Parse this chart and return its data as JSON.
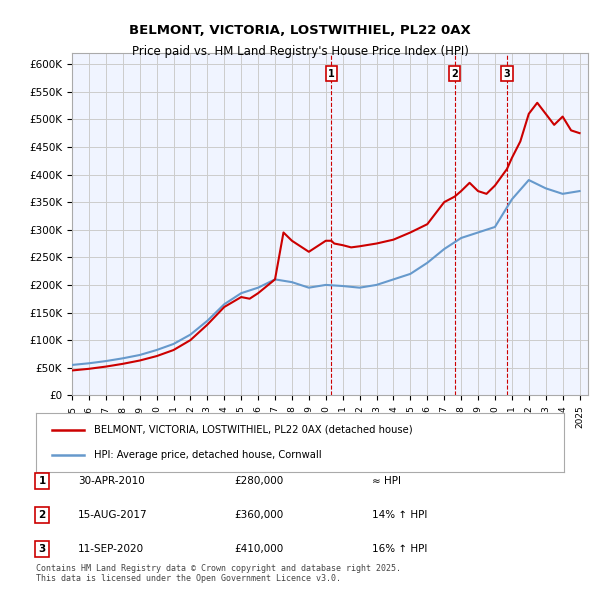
{
  "title": "BELMONT, VICTORIA, LOSTWITHIEL, PL22 0AX",
  "subtitle": "Price paid vs. HM Land Registry's House Price Index (HPI)",
  "legend_line1": "BELMONT, VICTORIA, LOSTWITHIEL, PL22 0AX (detached house)",
  "legend_line2": "HPI: Average price, detached house, Cornwall",
  "footer": "Contains HM Land Registry data © Crown copyright and database right 2025.\nThis data is licensed under the Open Government Licence v3.0.",
  "transactions": [
    {
      "num": 1,
      "date": "30-APR-2010",
      "price": "£280,000",
      "vs_hpi": "≈ HPI",
      "year": 2010.33
    },
    {
      "num": 2,
      "date": "15-AUG-2017",
      "price": "£360,000",
      "vs_hpi": "14% ↑ HPI",
      "year": 2017.62
    },
    {
      "num": 3,
      "date": "11-SEP-2020",
      "price": "£410,000",
      "vs_hpi": "16% ↑ HPI",
      "year": 2020.71
    }
  ],
  "price_color": "#cc0000",
  "hpi_color": "#6699cc",
  "vline_color": "#cc0000",
  "background_color": "#f0f4ff",
  "grid_color": "#cccccc",
  "ylim": [
    0,
    620000
  ],
  "xlim_start": 1995,
  "xlim_end": 2025.5,
  "hpi_data_x": [
    1995,
    1996,
    1997,
    1998,
    1999,
    2000,
    2001,
    2002,
    2003,
    2004,
    2005,
    2006,
    2007,
    2008,
    2009,
    2010,
    2011,
    2012,
    2013,
    2014,
    2015,
    2016,
    2017,
    2018,
    2019,
    2020,
    2021,
    2022,
    2023,
    2024,
    2025
  ],
  "hpi_data_y": [
    55000,
    58000,
    62000,
    67000,
    73000,
    82000,
    93000,
    110000,
    135000,
    165000,
    185000,
    195000,
    210000,
    205000,
    195000,
    200000,
    198000,
    195000,
    200000,
    210000,
    220000,
    240000,
    265000,
    285000,
    295000,
    305000,
    355000,
    390000,
    375000,
    365000,
    370000
  ],
  "price_data_x": [
    1995,
    1996,
    1997,
    1998,
    1999,
    2000,
    2001,
    2002,
    2003,
    2004,
    2005,
    2005.5,
    2006,
    2007,
    2007.5,
    2008,
    2008.5,
    2009,
    2009.5,
    2010,
    2010.33,
    2010.5,
    2011,
    2011.5,
    2012,
    2013,
    2014,
    2015,
    2016,
    2016.5,
    2017,
    2017.62,
    2018,
    2018.5,
    2019,
    2019.5,
    2020,
    2020.71,
    2021,
    2021.5,
    2022,
    2022.5,
    2023,
    2023.5,
    2024,
    2024.5,
    2025
  ],
  "price_data_y": [
    45000,
    48000,
    52000,
    57000,
    63000,
    71000,
    82000,
    100000,
    128000,
    160000,
    178000,
    175000,
    185000,
    210000,
    295000,
    280000,
    270000,
    260000,
    270000,
    280000,
    280000,
    275000,
    272000,
    268000,
    270000,
    275000,
    282000,
    295000,
    310000,
    330000,
    350000,
    360000,
    370000,
    385000,
    370000,
    365000,
    380000,
    410000,
    430000,
    460000,
    510000,
    530000,
    510000,
    490000,
    505000,
    480000,
    475000
  ]
}
